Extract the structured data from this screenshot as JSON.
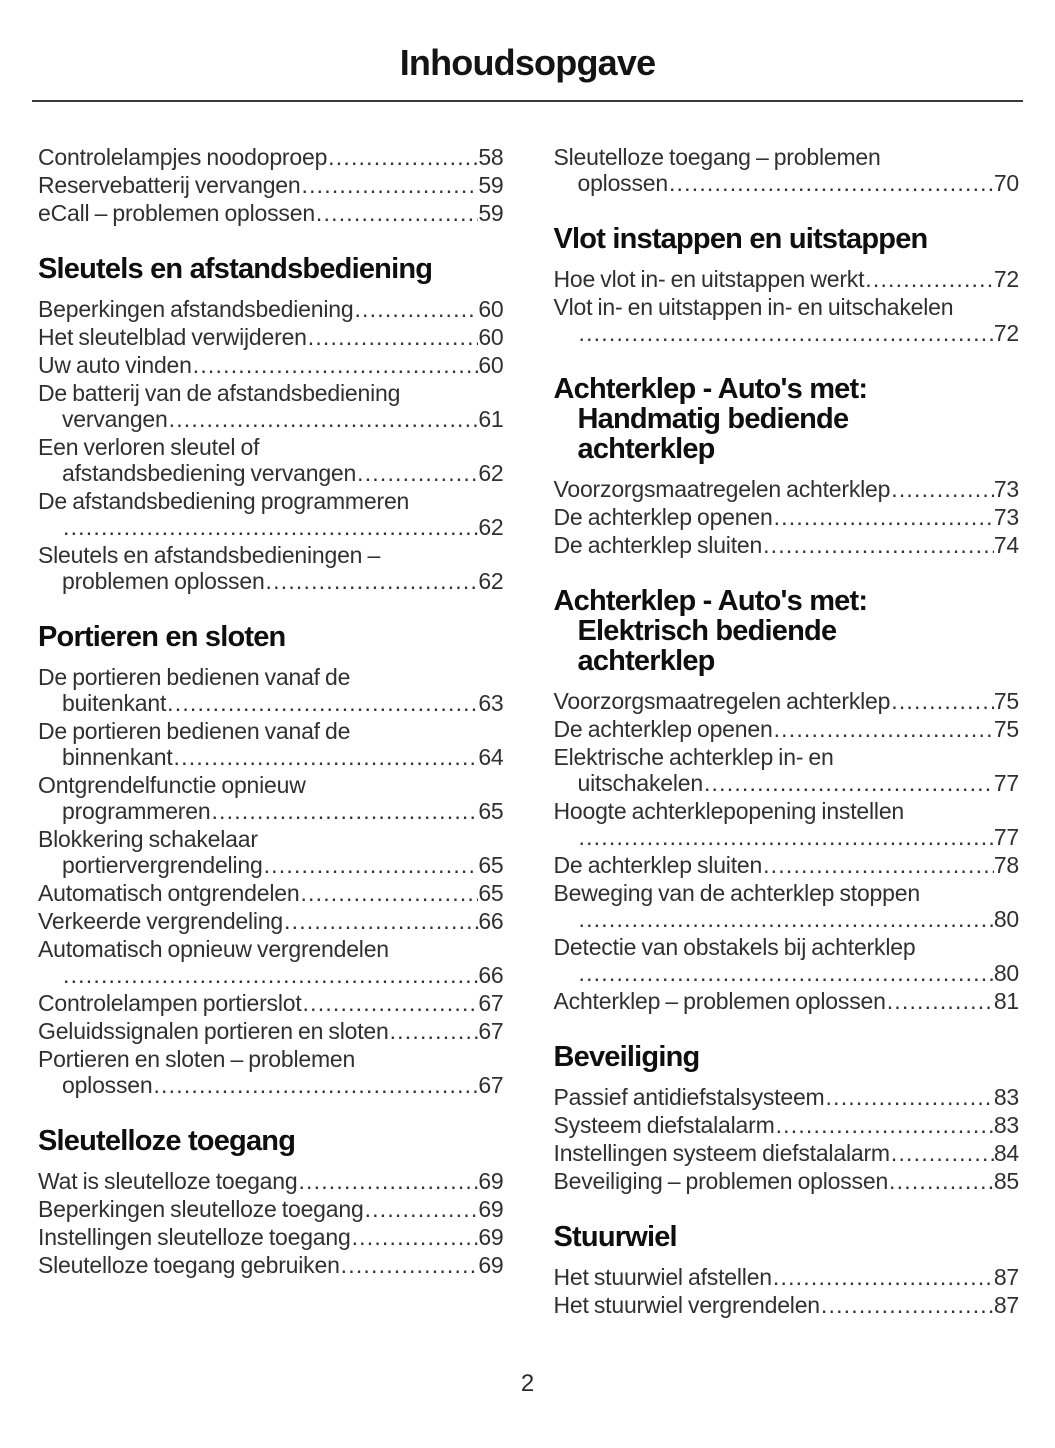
{
  "page": {
    "title": "Inhoudsopgave",
    "page_number": "2"
  },
  "columns": [
    {
      "blocks": [
        {
          "heading_lines": [],
          "entries": [
            {
              "lines": [
                "Controlelampjes noodoproep"
              ],
              "page": "58"
            },
            {
              "lines": [
                "Reservebatterij vervangen"
              ],
              "page": "59"
            },
            {
              "lines": [
                "eCall – problemen oplossen"
              ],
              "page": "59"
            }
          ]
        },
        {
          "heading_lines": [
            "Sleutels en afstandsbediening"
          ],
          "entries": [
            {
              "lines": [
                "Beperkingen afstandsbediening"
              ],
              "page": "60"
            },
            {
              "lines": [
                "Het sleutelblad verwijderen"
              ],
              "page": "60"
            },
            {
              "lines": [
                "Uw auto vinden"
              ],
              "page": "60"
            },
            {
              "lines": [
                "De batterij van de afstandsbediening",
                "vervangen"
              ],
              "page": "61"
            },
            {
              "lines": [
                "Een verloren sleutel of",
                "afstandsbediening vervangen"
              ],
              "page": "62"
            },
            {
              "lines": [
                "De afstandsbediening programmeren",
                ""
              ],
              "page": "62"
            },
            {
              "lines": [
                "Sleutels en afstandsbedieningen –",
                "problemen oplossen"
              ],
              "page": "62"
            }
          ]
        },
        {
          "heading_lines": [
            "Portieren en sloten"
          ],
          "entries": [
            {
              "lines": [
                "De portieren bedienen vanaf de",
                "buitenkant"
              ],
              "page": "63"
            },
            {
              "lines": [
                "De portieren bedienen vanaf de",
                "binnenkant"
              ],
              "page": "64"
            },
            {
              "lines": [
                "Ontgrendelfunctie opnieuw",
                "programmeren"
              ],
              "page": "65"
            },
            {
              "lines": [
                "Blokkering schakelaar",
                "portiervergrendeling"
              ],
              "page": "65"
            },
            {
              "lines": [
                "Automatisch ontgrendelen"
              ],
              "page": "65"
            },
            {
              "lines": [
                "Verkeerde vergrendeling"
              ],
              "page": "66"
            },
            {
              "lines": [
                "Automatisch opnieuw vergrendelen",
                ""
              ],
              "page": "66"
            },
            {
              "lines": [
                "Controlelampen portierslot"
              ],
              "page": "67"
            },
            {
              "lines": [
                "Geluidssignalen portieren en sloten"
              ],
              "page": "67"
            },
            {
              "lines": [
                "Portieren en sloten – problemen",
                "oplossen"
              ],
              "page": "67"
            }
          ]
        },
        {
          "heading_lines": [
            "Sleutelloze toegang"
          ],
          "entries": [
            {
              "lines": [
                "Wat is sleutelloze toegang"
              ],
              "page": "69"
            },
            {
              "lines": [
                "Beperkingen sleutelloze toegang"
              ],
              "page": "69"
            },
            {
              "lines": [
                "Instellingen sleutelloze toegang"
              ],
              "page": "69"
            },
            {
              "lines": [
                "Sleutelloze toegang gebruiken"
              ],
              "page": "69"
            }
          ]
        }
      ]
    },
    {
      "blocks": [
        {
          "heading_lines": [],
          "entries": [
            {
              "lines": [
                "Sleutelloze toegang – problemen",
                "oplossen"
              ],
              "page": "70"
            }
          ]
        },
        {
          "heading_lines": [
            "Vlot instappen en uitstappen"
          ],
          "entries": [
            {
              "lines": [
                "Hoe vlot in- en uitstappen werkt"
              ],
              "page": "72"
            },
            {
              "lines": [
                "Vlot in- en uitstappen in- en uitschakelen",
                ""
              ],
              "page": "72"
            }
          ]
        },
        {
          "heading_lines": [
            "Achterklep - Auto's met:",
            "Handmatig bediende",
            "achterklep"
          ],
          "entries": [
            {
              "lines": [
                "Voorzorgsmaatregelen achterklep"
              ],
              "page": "73"
            },
            {
              "lines": [
                "De achterklep openen"
              ],
              "page": "73"
            },
            {
              "lines": [
                "De achterklep sluiten"
              ],
              "page": "74"
            }
          ]
        },
        {
          "heading_lines": [
            "Achterklep - Auto's met:",
            "Elektrisch bediende",
            "achterklep"
          ],
          "entries": [
            {
              "lines": [
                "Voorzorgsmaatregelen achterklep"
              ],
              "page": "75"
            },
            {
              "lines": [
                "De achterklep openen"
              ],
              "page": "75"
            },
            {
              "lines": [
                "Elektrische achterklep in- en",
                "uitschakelen"
              ],
              "page": "77"
            },
            {
              "lines": [
                "Hoogte achterklepopening instellen",
                ""
              ],
              "page": "77"
            },
            {
              "lines": [
                "De achterklep sluiten"
              ],
              "page": "78"
            },
            {
              "lines": [
                "Beweging van de achterklep stoppen",
                ""
              ],
              "page": "80"
            },
            {
              "lines": [
                "Detectie van obstakels bij achterklep",
                ""
              ],
              "page": "80"
            },
            {
              "lines": [
                "Achterklep – problemen oplossen"
              ],
              "page": "81"
            }
          ]
        },
        {
          "heading_lines": [
            "Beveiliging"
          ],
          "entries": [
            {
              "lines": [
                "Passief antidiefstalsysteem"
              ],
              "page": "83"
            },
            {
              "lines": [
                "Systeem diefstalalarm"
              ],
              "page": "83"
            },
            {
              "lines": [
                "Instellingen systeem diefstalalarm"
              ],
              "page": "84"
            },
            {
              "lines": [
                "Beveiliging – problemen oplossen"
              ],
              "page": "85"
            }
          ]
        },
        {
          "heading_lines": [
            "Stuurwiel"
          ],
          "entries": [
            {
              "lines": [
                "Het stuurwiel afstellen"
              ],
              "page": "87"
            },
            {
              "lines": [
                "Het stuurwiel vergrendelen"
              ],
              "page": "87"
            }
          ]
        }
      ]
    }
  ]
}
